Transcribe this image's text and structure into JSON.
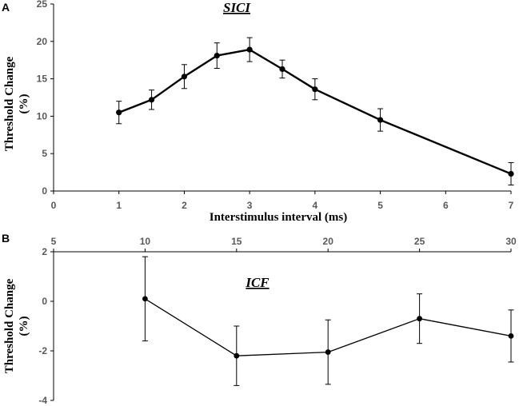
{
  "chart_data": [
    {
      "panel": "A",
      "type": "line",
      "title": "SICI",
      "xlabel": "Interstimulus interval (ms)",
      "ylabel": "Threshold Change (%)",
      "ylabel_lines": [
        "Threshold Change",
        "(%)"
      ],
      "xlim": [
        0,
        7
      ],
      "ylim": [
        0,
        25
      ],
      "xticks": [
        0,
        1,
        2,
        3,
        4,
        5,
        6,
        7
      ],
      "yticks": [
        0,
        5,
        10,
        15,
        20,
        25
      ],
      "x": [
        1,
        1.5,
        2,
        2.5,
        3,
        3.5,
        4,
        5,
        7
      ],
      "values": [
        10.5,
        12.2,
        15.3,
        18.1,
        18.9,
        16.3,
        13.6,
        9.5,
        2.3
      ],
      "errors": [
        1.5,
        1.3,
        1.6,
        1.7,
        1.6,
        1.2,
        1.4,
        1.5,
        1.5
      ]
    },
    {
      "panel": "B",
      "type": "line",
      "title": "ICF",
      "xlabel": "",
      "ylabel": "Threshold Change (%)",
      "ylabel_lines": [
        "Threshold Change",
        "(%)"
      ],
      "xlim": [
        5,
        30
      ],
      "ylim": [
        -4,
        2
      ],
      "xticks": [
        5,
        10,
        15,
        20,
        25,
        30
      ],
      "yticks": [
        2,
        0,
        -2,
        -4
      ],
      "x": [
        10,
        15,
        20,
        25,
        30
      ],
      "values": [
        0.1,
        -2.2,
        -2.05,
        -0.7,
        -1.4
      ],
      "errors": [
        1.7,
        1.2,
        1.3,
        1.0,
        1.05
      ]
    }
  ],
  "colors": {
    "line": "#000000",
    "axis": "#000000",
    "tick_label": "#595959"
  }
}
